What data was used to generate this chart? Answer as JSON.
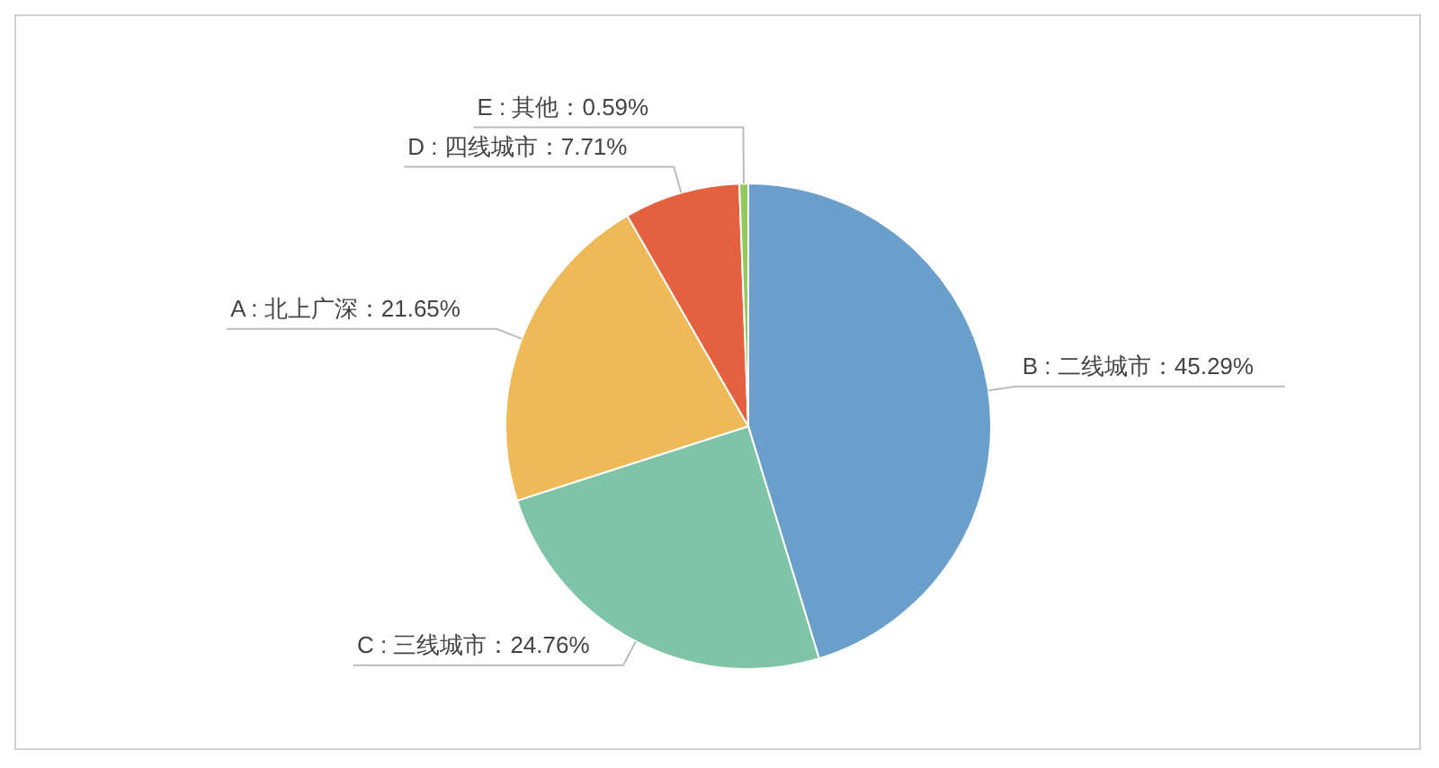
{
  "chart_data": {
    "type": "pie",
    "categories": [
      "B : 二线城市",
      "C : 三线城市",
      "A : 北上广深",
      "D : 四线城市",
      "E : 其他"
    ],
    "values": [
      45.29,
      24.76,
      21.65,
      7.71,
      0.59
    ],
    "colors": [
      "#6b9fcb",
      "#7fc4a6",
      "#efb958",
      "#e5603f",
      "#92c95b"
    ],
    "value_labels": [
      "45.29%",
      "24.76%",
      "21.65%",
      "7.71%",
      "0.59%"
    ]
  }
}
